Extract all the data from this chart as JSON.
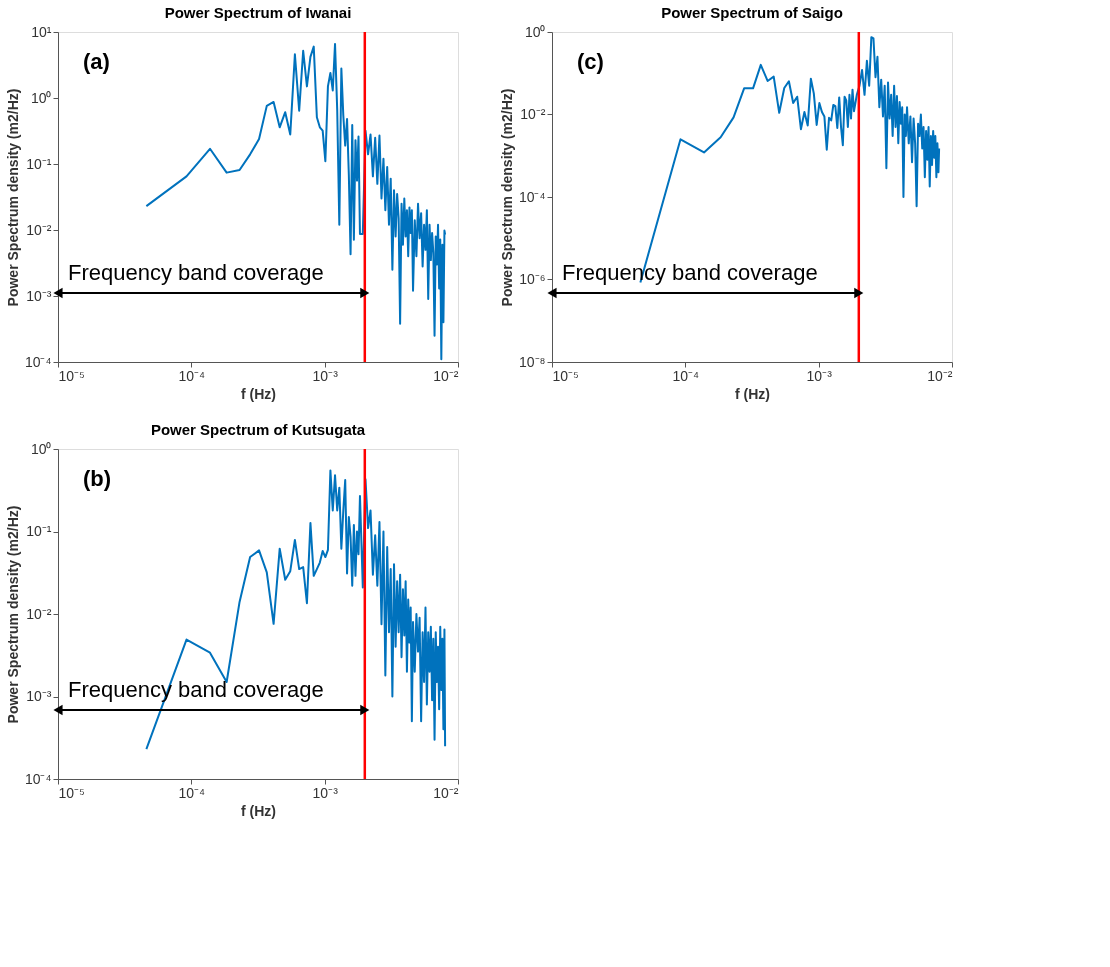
{
  "chart_data": [
    {
      "type": "line",
      "title": "Power Spectrum of Iwanai",
      "xlabel": "f (Hz)",
      "ylabel": "Power Spectrum density (m2/Hz)",
      "x": [
        4.6e-05,
        9.2e-05,
        0.000138,
        0.000184,
        0.00023,
        0.000276,
        0.000322,
        0.000368,
        0.000414,
        0.00046,
        0.000506,
        0.000552,
        0.000598,
        0.000644,
        0.00069,
        0.000736,
        0.000782,
        0.000828,
        0.000874,
        0.00092,
        0.000966,
        0.001012,
        0.001058,
        0.001104,
        0.00115,
        0.001196,
        0.001242,
        0.001288,
        0.001334,
        0.00138,
        0.001426,
        0.001472,
        0.001518,
        0.001564,
        0.00161,
        0.001656,
        0.001702,
        0.001748,
        0.001794,
        0.00184,
        0.001932,
        0.002024,
        0.002116,
        0.002208,
        0.0023,
        0.002392,
        0.002484,
        0.002576,
        0.002668,
        0.00276,
        0.002852,
        0.002944,
        0.003036,
        0.003128,
        0.00322,
        0.003312,
        0.003404,
        0.003496,
        0.003588,
        0.00368,
        0.003772,
        0.003864,
        0.003956,
        0.004048,
        0.00414,
        0.004232,
        0.004324,
        0.004416,
        0.004508,
        0.0046,
        0.004738,
        0.004876,
        0.005014,
        0.005152,
        0.00529,
        0.005428,
        0.005566,
        0.005704,
        0.005842,
        0.00598,
        0.006118,
        0.006256,
        0.006394,
        0.006532,
        0.00667,
        0.006808,
        0.006946,
        0.007084,
        0.007222,
        0.00736,
        0.007498,
        0.007636,
        0.007774,
        0.007912,
        0.008004
      ],
      "series": [
        {
          "color": "#0072bd",
          "values": [
            0.023,
            0.065,
            0.17,
            0.074,
            0.081,
            0.14,
            0.24,
            0.76,
            0.87,
            0.36,
            0.61,
            0.28,
            4.6,
            0.64,
            5.2,
            1.5,
            4.2,
            6.0,
            0.51,
            0.36,
            0.32,
            0.11,
            1.5,
            2.4,
            1.3,
            6.6,
            0.66,
            0.012,
            2.8,
            0.54,
            0.19,
            0.48,
            0.068,
            0.0043,
            0.39,
            0.0071,
            0.23,
            0.056,
            0.26,
            0.0087,
            0.0087,
            0.32,
            0.14,
            0.28,
            0.065,
            0.25,
            0.05,
            0.27,
            0.03,
            0.12,
            0.02,
            0.09,
            0.012,
            0.06,
            0.0025,
            0.04,
            0.008,
            0.035,
            0.015,
            0.00038,
            0.025,
            0.006,
            0.03,
            0.008,
            0.02,
            0.004,
            0.022,
            0.009,
            0.02,
            0.0012,
            0.014,
            0.004,
            0.025,
            0.0075,
            0.018,
            0.0028,
            0.012,
            0.005,
            0.02,
            0.0009,
            0.012,
            0.0035,
            0.009,
            0.0045,
            0.00025,
            0.008,
            0.003,
            0.012,
            0.0013,
            0.0072,
            0.00011,
            0.006,
            0.0004,
            0.0098,
            0.0085
          ]
        }
      ],
      "xlim": [
        1e-05,
        0.01
      ],
      "ylim": [
        0.0001,
        10
      ],
      "log": "xy",
      "xticks": [
        {
          "value": 1e-05,
          "label": "10⁻⁵"
        },
        {
          "value": 0.0001,
          "label": "10⁻⁴"
        },
        {
          "value": 0.001,
          "label": "10⁻³"
        },
        {
          "value": 0.01,
          "label": "10⁻²"
        }
      ],
      "yticks": [
        {
          "value": 0.0001,
          "label": "10⁻⁴"
        },
        {
          "value": 0.001,
          "label": "10⁻³"
        },
        {
          "value": 0.01,
          "label": "10⁻²"
        },
        {
          "value": 0.1,
          "label": "10⁻¹"
        },
        {
          "value": 1,
          "label": "10⁰"
        },
        {
          "value": 10,
          "label": "10¹"
        }
      ],
      "ref_lines": [
        {
          "axis": "x",
          "value": 0.002,
          "color": "#ff0000"
        }
      ],
      "annotations": [
        "(a)",
        "Frequency band coverage"
      ]
    },
    {
      "type": "line",
      "title": "Power Spectrum of Saigo",
      "xlabel": "f (Hz)",
      "ylabel": "Power Spectrum density (m2/Hz)",
      "x": [
        4.6e-05,
        9.2e-05,
        0.000138,
        0.000184,
        0.00023,
        0.000276,
        0.000322,
        0.000368,
        0.000414,
        0.00046,
        0.000506,
        0.000552,
        0.000598,
        0.000644,
        0.00069,
        0.000736,
        0.000782,
        0.000828,
        0.000874,
        0.00092,
        0.000966,
        0.001012,
        0.001058,
        0.001104,
        0.00115,
        0.001196,
        0.001242,
        0.001288,
        0.001334,
        0.00138,
        0.001426,
        0.001472,
        0.001518,
        0.001564,
        0.00161,
        0.001656,
        0.001702,
        0.001748,
        0.001794,
        0.00184,
        0.001932,
        0.002024,
        0.002116,
        0.002208,
        0.0023,
        0.002392,
        0.002484,
        0.002576,
        0.002668,
        0.00276,
        0.002852,
        0.002944,
        0.003036,
        0.003128,
        0.00322,
        0.003312,
        0.003404,
        0.003496,
        0.003588,
        0.00368,
        0.003772,
        0.003864,
        0.003956,
        0.004048,
        0.00414,
        0.004232,
        0.004324,
        0.004416,
        0.004508,
        0.0046,
        0.004738,
        0.004876,
        0.005014,
        0.005152,
        0.00529,
        0.005428,
        0.005566,
        0.005704,
        0.005842,
        0.00598,
        0.006118,
        0.006256,
        0.006394,
        0.006532,
        0.00667,
        0.006808,
        0.006946,
        0.007084,
        0.007222,
        0.00736,
        0.007498,
        0.007636,
        0.007774,
        0.007912,
        0.008004
      ],
      "series": [
        {
          "color": "#0072bd",
          "values": [
            8.5e-07,
            0.0025,
            0.0012,
            0.0028,
            0.0085,
            0.043,
            0.043,
            0.16,
            0.065,
            0.083,
            0.011,
            0.044,
            0.064,
            0.019,
            0.027,
            0.0044,
            0.0115,
            0.0054,
            0.074,
            0.032,
            0.0056,
            0.019,
            0.0115,
            0.0089,
            0.0014,
            0.0083,
            0.0072,
            0.017,
            0.016,
            0.0047,
            0.026,
            0.0049,
            0.0018,
            0.027,
            0.022,
            0.005,
            0.03,
            0.008,
            0.04,
            0.012,
            0.03,
            0.05,
            0.12,
            0.03,
            0.2,
            0.05,
            0.75,
            0.7,
            0.08,
            0.25,
            0.015,
            0.07,
            0.009,
            0.05,
            0.0005,
            0.06,
            0.008,
            0.03,
            0.003,
            0.05,
            0.005,
            0.028,
            0.002,
            0.02,
            0.006,
            0.015,
            0.0001,
            0.01,
            0.003,
            0.015,
            0.002,
            0.009,
            0.0007,
            0.008,
            0.002,
            6e-05,
            0.006,
            0.003,
            0.01,
            0.0015,
            0.005,
            0.0003,
            0.004,
            0.0008,
            0.005,
            0.00018,
            0.003,
            0.0006,
            0.004,
            0.0009,
            0.003,
            0.0003,
            0.002,
            0.0004,
            0.0015
          ]
        }
      ],
      "xlim": [
        1e-05,
        0.01
      ],
      "ylim": [
        1e-08,
        1
      ],
      "log": "xy",
      "xticks": [
        {
          "value": 1e-05,
          "label": "10⁻⁵"
        },
        {
          "value": 0.0001,
          "label": "10⁻⁴"
        },
        {
          "value": 0.001,
          "label": "10⁻³"
        },
        {
          "value": 0.01,
          "label": "10⁻²"
        }
      ],
      "yticks": [
        {
          "value": 1e-08,
          "label": "10⁻⁸"
        },
        {
          "value": 1e-06,
          "label": "10⁻⁶"
        },
        {
          "value": 0.0001,
          "label": "10⁻⁴"
        },
        {
          "value": 0.01,
          "label": "10⁻²"
        },
        {
          "value": 1,
          "label": "10⁰"
        }
      ],
      "ref_lines": [
        {
          "axis": "x",
          "value": 0.002,
          "color": "#ff0000"
        }
      ],
      "annotations": [
        "(c)",
        "Frequency band coverage"
      ]
    },
    {
      "type": "line",
      "title": "Power Spectrum of Kutsugata",
      "xlabel": "f (Hz)",
      "ylabel": "Power Spectrum density (m2/Hz)",
      "x": [
        4.6e-05,
        9.2e-05,
        0.000138,
        0.000184,
        0.00023,
        0.000276,
        0.000322,
        0.000368,
        0.000414,
        0.00046,
        0.000506,
        0.000552,
        0.000598,
        0.000644,
        0.00069,
        0.000736,
        0.000782,
        0.000828,
        0.000874,
        0.00092,
        0.000966,
        0.001012,
        0.001058,
        0.001104,
        0.00115,
        0.001196,
        0.001242,
        0.001288,
        0.001334,
        0.00138,
        0.001426,
        0.001472,
        0.001518,
        0.001564,
        0.00161,
        0.001656,
        0.001702,
        0.001748,
        0.001794,
        0.00184,
        0.001932,
        0.002024,
        0.002116,
        0.002208,
        0.0023,
        0.002392,
        0.002484,
        0.002576,
        0.002668,
        0.00276,
        0.002852,
        0.002944,
        0.003036,
        0.003128,
        0.00322,
        0.003312,
        0.003404,
        0.003496,
        0.003588,
        0.00368,
        0.003772,
        0.003864,
        0.003956,
        0.004048,
        0.00414,
        0.004232,
        0.004324,
        0.004416,
        0.004508,
        0.0046,
        0.004738,
        0.004876,
        0.005014,
        0.005152,
        0.00529,
        0.005428,
        0.005566,
        0.005704,
        0.005842,
        0.00598,
        0.006118,
        0.006256,
        0.006394,
        0.006532,
        0.00667,
        0.006808,
        0.006946,
        0.007084,
        0.007222,
        0.00736,
        0.007498,
        0.007636,
        0.007774,
        0.007912,
        0.008004
      ],
      "series": [
        {
          "color": "#0072bd",
          "values": [
            0.00023,
            0.0049,
            0.0034,
            0.0015,
            0.014,
            0.049,
            0.059,
            0.032,
            0.0076,
            0.062,
            0.026,
            0.033,
            0.079,
            0.035,
            0.037,
            0.0135,
            0.127,
            0.029,
            0.035,
            0.042,
            0.058,
            0.049,
            0.06,
            0.55,
            0.18,
            0.48,
            0.18,
            0.34,
            0.062,
            0.18,
            0.42,
            0.031,
            0.15,
            0.086,
            0.022,
            0.12,
            0.029,
            0.1,
            0.053,
            0.27,
            0.021,
            0.43,
            0.11,
            0.18,
            0.03,
            0.09,
            0.022,
            0.13,
            0.0075,
            0.1,
            0.0018,
            0.065,
            0.006,
            0.035,
            0.001,
            0.04,
            0.004,
            0.025,
            0.006,
            0.03,
            0.003,
            0.02,
            0.0055,
            0.025,
            0.002,
            0.015,
            0.0045,
            0.012,
            0.0005,
            0.008,
            0.002,
            0.01,
            0.0035,
            0.009,
            0.0005,
            0.006,
            0.0015,
            0.012,
            0.0008,
            0.006,
            0.002,
            0.007,
            0.0009,
            0.005,
            0.0003,
            0.006,
            0.0015,
            0.004,
            0.0007,
            0.007,
            0.0012,
            0.005,
            0.0004,
            0.0065,
            0.00025
          ]
        }
      ],
      "xlim": [
        1e-05,
        0.01
      ],
      "ylim": [
        0.0001,
        1
      ],
      "log": "xy",
      "xticks": [
        {
          "value": 1e-05,
          "label": "10⁻⁵"
        },
        {
          "value": 0.0001,
          "label": "10⁻⁴"
        },
        {
          "value": 0.001,
          "label": "10⁻³"
        },
        {
          "value": 0.01,
          "label": "10⁻²"
        }
      ],
      "yticks": [
        {
          "value": 0.0001,
          "label": "10⁻⁴"
        },
        {
          "value": 0.001,
          "label": "10⁻³"
        },
        {
          "value": 0.01,
          "label": "10⁻²"
        },
        {
          "value": 0.1,
          "label": "10⁻¹"
        },
        {
          "value": 1,
          "label": "10⁰"
        }
      ],
      "ref_lines": [
        {
          "axis": "x",
          "value": 0.002,
          "color": "#ff0000"
        }
      ],
      "annotations": [
        "(b)",
        "Frequency band coverage"
      ]
    }
  ]
}
